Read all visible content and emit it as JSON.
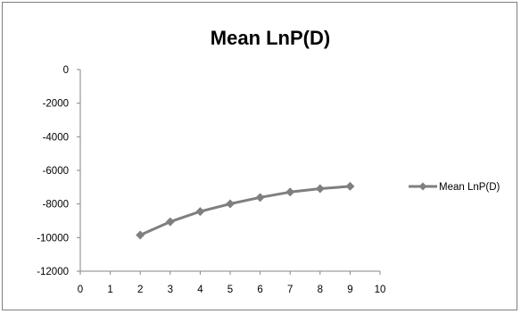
{
  "chart_data": {
    "type": "line",
    "title": "Mean LnP(D)",
    "xlabel": "",
    "ylabel": "",
    "xlim": [
      0,
      10
    ],
    "ylim": [
      -12000,
      0
    ],
    "xticks": [
      "0",
      "1",
      "2",
      "3",
      "4",
      "5",
      "6",
      "7",
      "8",
      "9",
      "10"
    ],
    "yticks": [
      "0",
      "-2000",
      "-4000",
      "-6000",
      "-8000",
      "-10000",
      "-12000"
    ],
    "grid": false,
    "legend_position": "right",
    "series": [
      {
        "name": "Mean LnP(D)",
        "color": "#7f7f7f",
        "marker": "diamond",
        "x": [
          2,
          3,
          4,
          5,
          6,
          7,
          8,
          9
        ],
        "y": [
          -9850,
          -9060,
          -8450,
          -7990,
          -7610,
          -7290,
          -7090,
          -6950
        ]
      }
    ]
  }
}
